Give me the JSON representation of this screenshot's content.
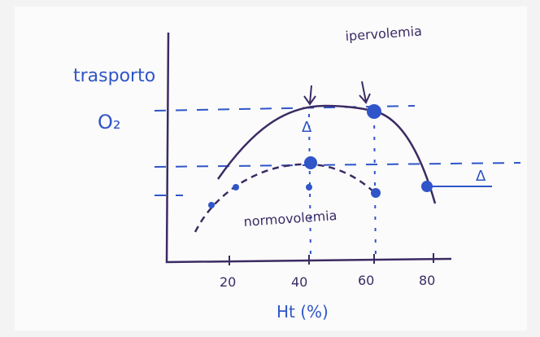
{
  "header": {
    "y_label": "trasporto",
    "y_label_sub": "O₂"
  },
  "annotations": {
    "upper": "ipervolemia",
    "lower": "normovolemia",
    "delta_left": "Δ",
    "delta_right": "Δ"
  },
  "x_axis": {
    "ticks": [
      "20",
      "40",
      "60",
      "80"
    ],
    "label": "Ht (%)"
  }
}
